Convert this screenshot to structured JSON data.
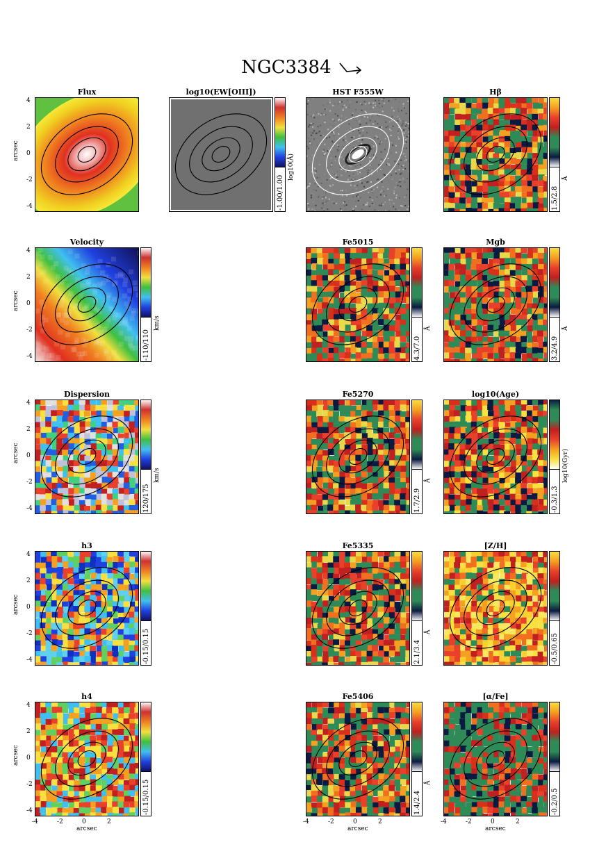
{
  "figure": {
    "title": "NGC3384",
    "axis_label": "arcsec",
    "y_ticks": [
      "4",
      "2",
      "0",
      "-2",
      "-4"
    ],
    "x_ticks": [
      "-4",
      "-2",
      "0",
      "2"
    ]
  },
  "panels": [
    {
      "id": "flux",
      "title": "Flux",
      "range": "",
      "unit": "",
      "style": "flux",
      "row": 0,
      "col": 0,
      "yaxis": true,
      "xaxis": false
    },
    {
      "id": "ew",
      "title": "log10(EW[OIII])",
      "range": "-1.00/1.00",
      "unit": "log10(Å)",
      "style": "gray",
      "row": 0,
      "col": 1,
      "yaxis": false,
      "xaxis": false
    },
    {
      "id": "hst",
      "title": "HST F555W",
      "range": "",
      "unit": "",
      "style": "hst",
      "row": 0,
      "col": 2,
      "yaxis": false,
      "xaxis": false
    },
    {
      "id": "hbeta",
      "title": "Hβ",
      "range": "1.5/2.8",
      "unit": "Å",
      "style": "idx",
      "row": 0,
      "col": 3,
      "yaxis": false,
      "xaxis": false
    },
    {
      "id": "velocity",
      "title": "Velocity",
      "range": "-110/110",
      "unit": "km/s",
      "style": "vel",
      "row": 1,
      "col": 0,
      "yaxis": true,
      "xaxis": false
    },
    {
      "id": "fe5015",
      "title": "Fe5015",
      "range": "4.3/7.0",
      "unit": "Å",
      "style": "idx",
      "row": 1,
      "col": 2,
      "yaxis": false,
      "xaxis": false
    },
    {
      "id": "mgb",
      "title": "Mgb",
      "range": "3.2/4.9",
      "unit": "Å",
      "style": "idx",
      "row": 1,
      "col": 3,
      "yaxis": false,
      "xaxis": false
    },
    {
      "id": "dispersion",
      "title": "Dispersion",
      "range": "120/175",
      "unit": "km/s",
      "style": "disp",
      "row": 2,
      "col": 0,
      "yaxis": true,
      "xaxis": false
    },
    {
      "id": "fe5270",
      "title": "Fe5270",
      "range": "1.7/2.9",
      "unit": "Å",
      "style": "idx",
      "row": 2,
      "col": 2,
      "yaxis": false,
      "xaxis": false
    },
    {
      "id": "age",
      "title": "log10(Age)",
      "range": "-0.3/1.3",
      "unit": "log10(Gyr)",
      "style": "age",
      "row": 2,
      "col": 3,
      "yaxis": false,
      "xaxis": false
    },
    {
      "id": "h3",
      "title": "h3",
      "range": "-0.15/0.15",
      "unit": "",
      "style": "h3",
      "row": 3,
      "col": 0,
      "yaxis": true,
      "xaxis": false
    },
    {
      "id": "fe5335",
      "title": "Fe5335",
      "range": "2.1/3.4",
      "unit": "Å",
      "style": "idx",
      "row": 3,
      "col": 2,
      "yaxis": false,
      "xaxis": false
    },
    {
      "id": "zh",
      "title": "[Z/H]",
      "range": "-0.5/0.65",
      "unit": "",
      "style": "zh",
      "row": 3,
      "col": 3,
      "yaxis": false,
      "xaxis": false
    },
    {
      "id": "h4",
      "title": "h4",
      "range": "-0.15/0.15",
      "unit": "",
      "style": "h4",
      "row": 4,
      "col": 0,
      "yaxis": true,
      "xaxis": true
    },
    {
      "id": "fe5406",
      "title": "Fe5406",
      "range": "1.4/2.4",
      "unit": "Å",
      "style": "idx",
      "row": 4,
      "col": 2,
      "yaxis": false,
      "xaxis": true
    },
    {
      "id": "alphafe",
      "title": "[α/Fe]",
      "range": "-0.2/0.5",
      "unit": "",
      "style": "alpha",
      "row": 4,
      "col": 3,
      "yaxis": false,
      "xaxis": true
    }
  ]
}
